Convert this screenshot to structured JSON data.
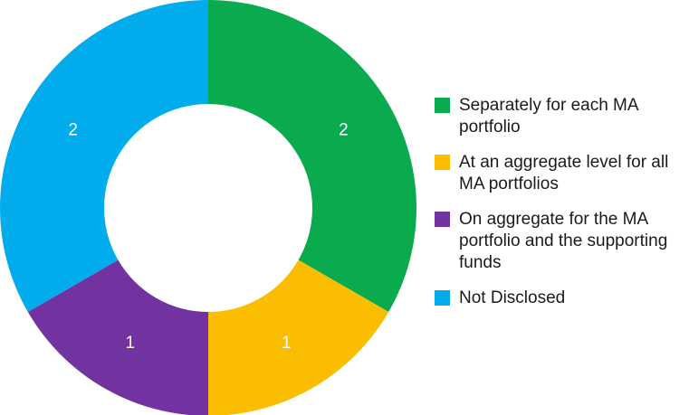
{
  "chart_data": {
    "type": "pie",
    "donut": true,
    "title": "",
    "categories": [
      "Separately for each MA portfolio",
      "At an aggregate level for all MA portfolios",
      "On aggregate for the MA portfolio and the supporting funds",
      "Not Disclosed"
    ],
    "values": [
      2,
      1,
      1,
      2
    ],
    "data_labels": [
      "2",
      "1",
      "1",
      "2"
    ],
    "colors": [
      "#0aaa4f",
      "#fbbd00",
      "#7232a0",
      "#00acec"
    ],
    "legend": {
      "placement": "right",
      "entries": [
        "Separately for each MA portfolio",
        "At an aggregate level for all MA portfolios",
        "On aggregate for the MA portfolio and the supporting funds",
        "Not Disclosed"
      ]
    }
  }
}
